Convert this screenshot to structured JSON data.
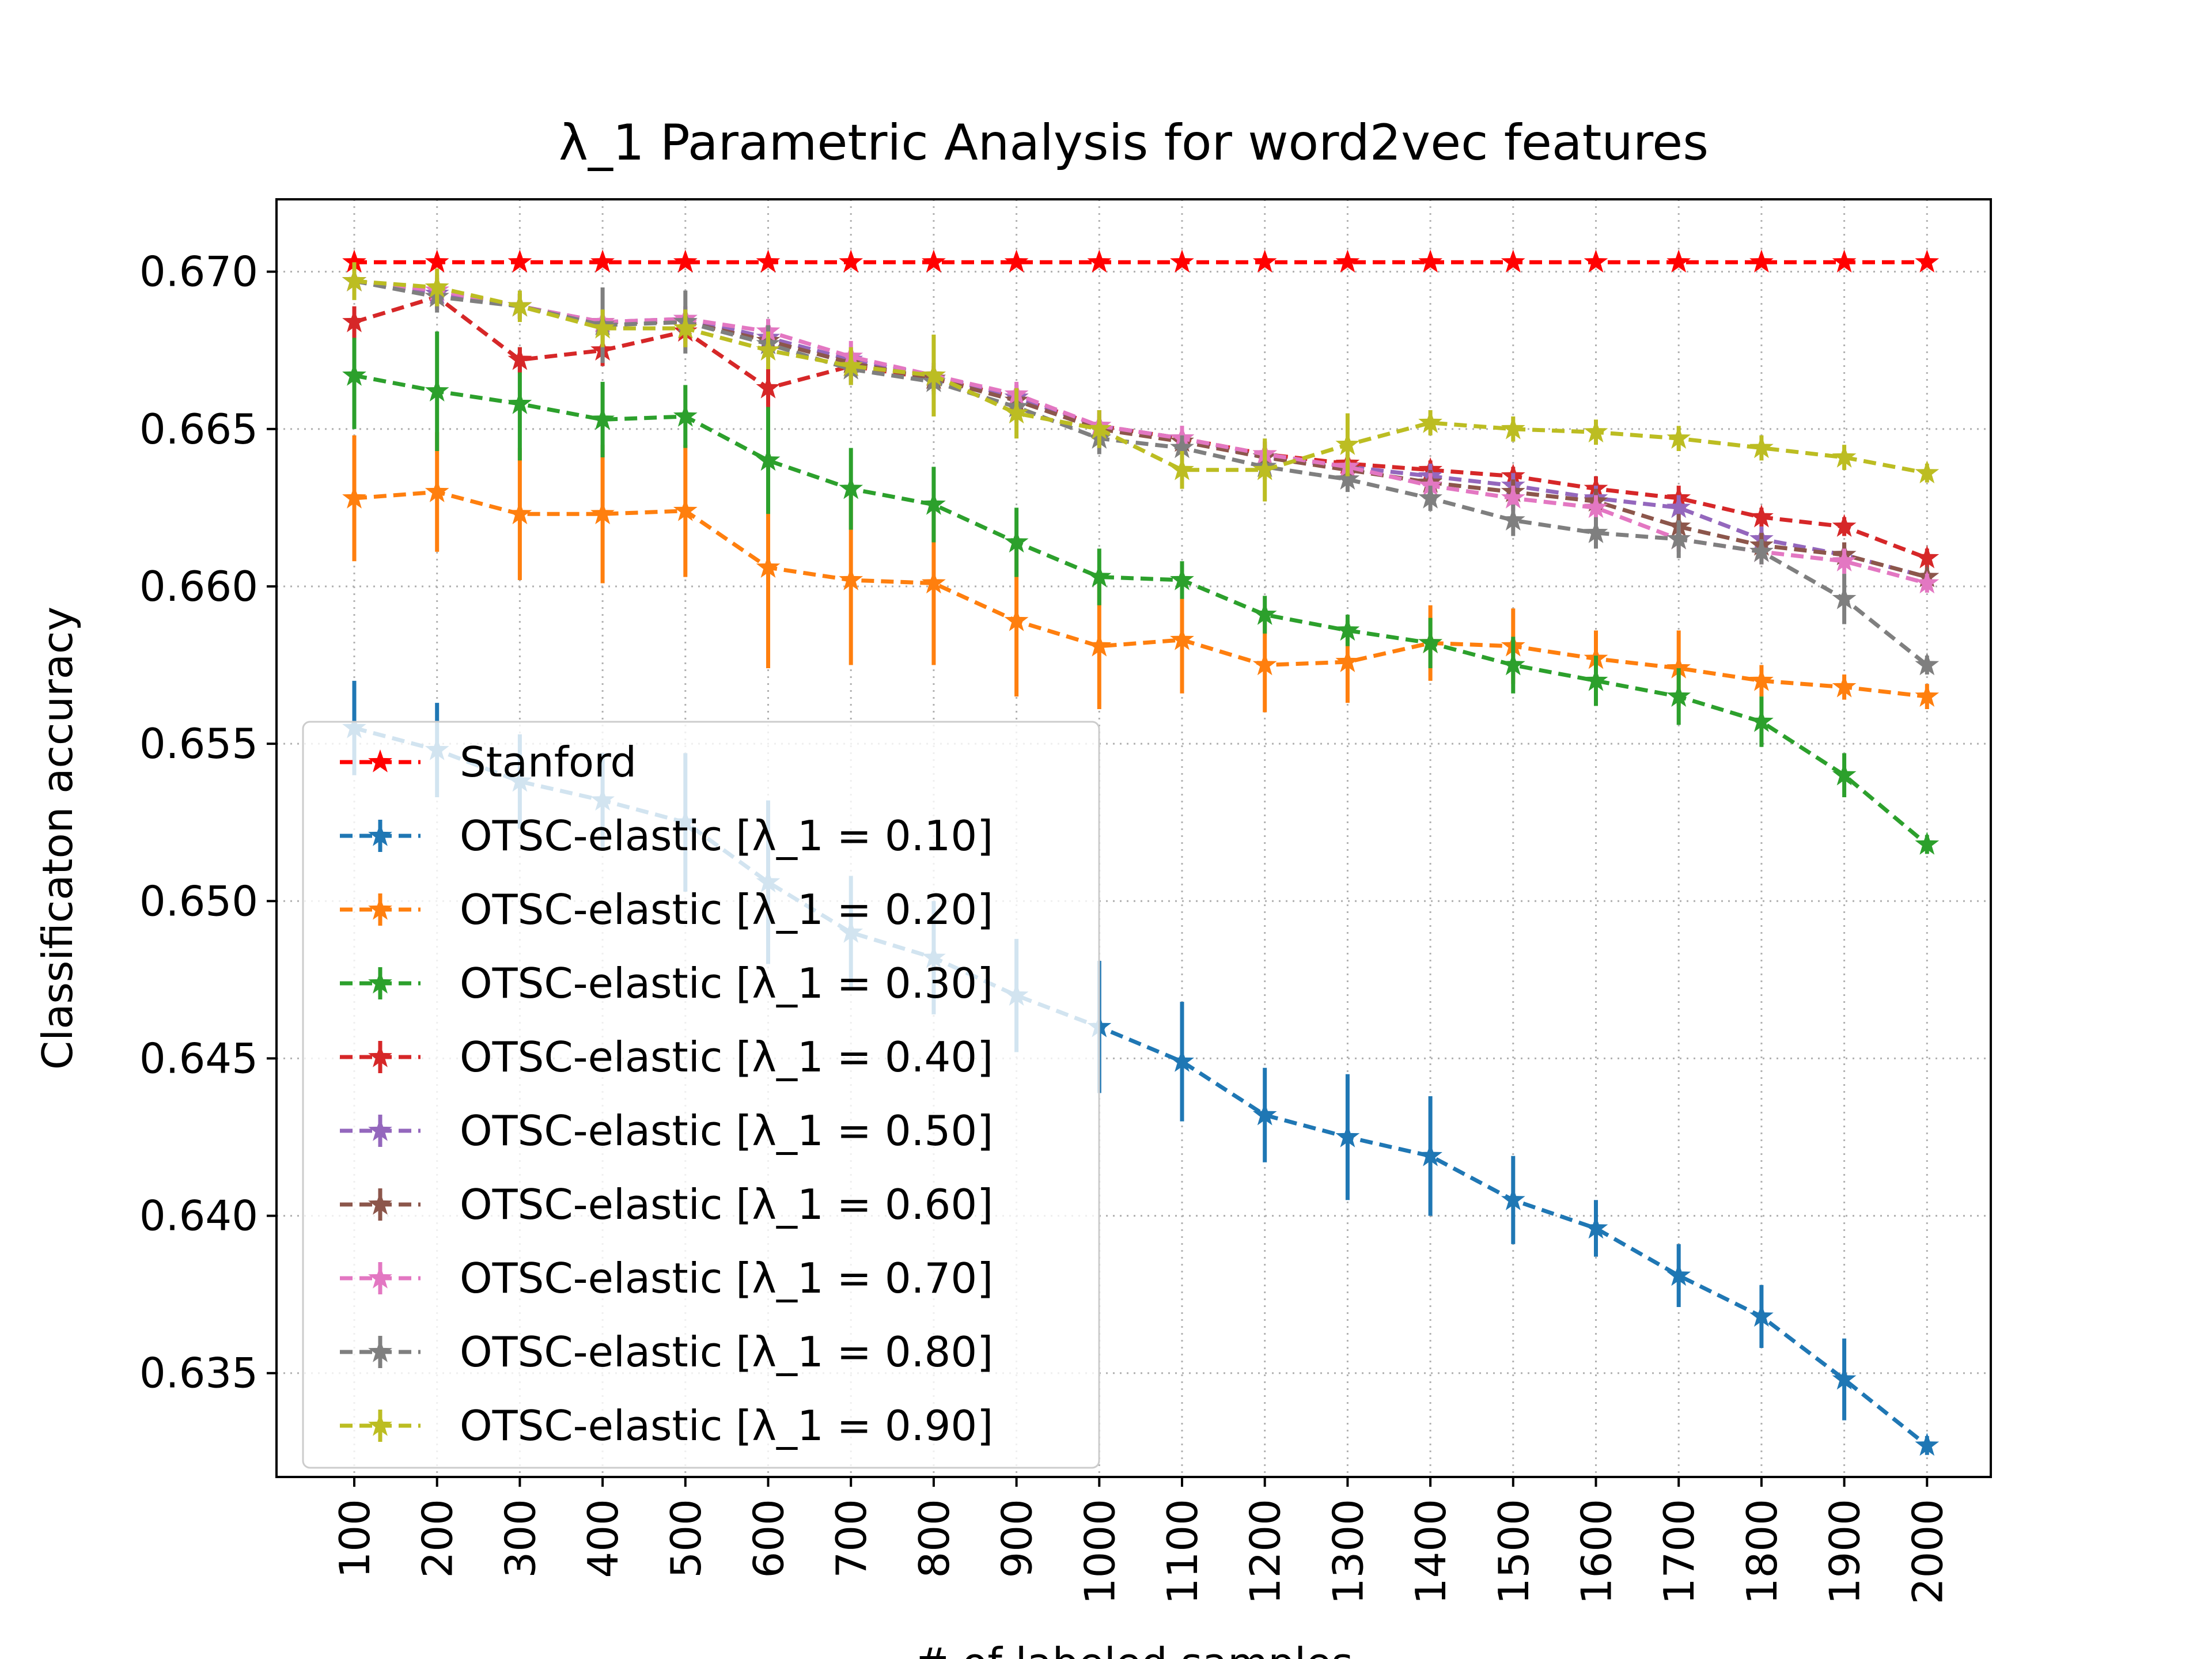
{
  "chart_data": {
    "type": "line",
    "title": "λ_1 Parametric Analysis for word2vec features",
    "xlabel": "# of labeled samples",
    "ylabel": "Classificaton accuracy",
    "x": [
      100,
      200,
      300,
      400,
      500,
      600,
      700,
      800,
      900,
      1000,
      1100,
      1200,
      1300,
      1400,
      1500,
      1600,
      1700,
      1800,
      1900,
      2000
    ],
    "xticks": [
      "100",
      "200",
      "300",
      "400",
      "500",
      "600",
      "700",
      "800",
      "900",
      "1000",
      "1100",
      "1200",
      "1300",
      "1400",
      "1500",
      "1600",
      "1700",
      "1800",
      "1900",
      "2000"
    ],
    "yticks": [
      "0.635",
      "0.640",
      "0.645",
      "0.650",
      "0.655",
      "0.660",
      "0.665",
      "0.670"
    ],
    "ylim": [
      0.6317,
      0.6723
    ],
    "grid": true,
    "legend_position": "lower-left",
    "marker": "star",
    "line_style": "dashed",
    "series": [
      {
        "name": "Stanford",
        "color": "#ff0000",
        "values": [
          0.6703,
          0.6703,
          0.6703,
          0.6703,
          0.6703,
          0.6703,
          0.6703,
          0.6703,
          0.6703,
          0.6703,
          0.6703,
          0.6703,
          0.6703,
          0.6703,
          0.6703,
          0.6703,
          0.6703,
          0.6703,
          0.6703,
          0.6703
        ],
        "errors": [
          0,
          0,
          0,
          0,
          0,
          0,
          0,
          0,
          0,
          0,
          0,
          0,
          0,
          0,
          0,
          0,
          0,
          0,
          0,
          0
        ]
      },
      {
        "name": "OTSC-elastic [λ_1 = 0.10]",
        "color": "#1f77b4",
        "values": [
          0.6555,
          0.6548,
          0.6538,
          0.6532,
          0.6525,
          0.6506,
          0.649,
          0.6482,
          0.647,
          0.646,
          0.6449,
          0.6432,
          0.6425,
          0.6419,
          0.6405,
          0.6396,
          0.6381,
          0.6368,
          0.6348,
          0.6327
        ],
        "errors": [
          0.0015,
          0.0015,
          0.0015,
          0.0015,
          0.0022,
          0.0026,
          0.0018,
          0.0018,
          0.0018,
          0.0021,
          0.0019,
          0.0015,
          0.002,
          0.0019,
          0.0014,
          0.0009,
          0.001,
          0.001,
          0.0013,
          0.0003
        ]
      },
      {
        "name": "OTSC-elastic [λ_1 = 0.20]",
        "color": "#ff7f0e",
        "values": [
          0.6628,
          0.663,
          0.6623,
          0.6623,
          0.6624,
          0.6606,
          0.6602,
          0.6601,
          0.6589,
          0.6581,
          0.6583,
          0.6575,
          0.6576,
          0.6582,
          0.6581,
          0.6577,
          0.6574,
          0.657,
          0.6568,
          0.6565
        ],
        "errors": [
          0.002,
          0.0019,
          0.0021,
          0.0022,
          0.0021,
          0.0032,
          0.0027,
          0.0026,
          0.0024,
          0.002,
          0.0017,
          0.0015,
          0.0013,
          0.0012,
          0.0012,
          0.0009,
          0.0012,
          0.0005,
          0.0004,
          0.0004
        ]
      },
      {
        "name": "OTSC-elastic [λ_1 = 0.30]",
        "color": "#2ca02c",
        "values": [
          0.6667,
          0.6662,
          0.6658,
          0.6653,
          0.6654,
          0.664,
          0.6631,
          0.6626,
          0.6614,
          0.6603,
          0.6602,
          0.6591,
          0.6586,
          0.6582,
          0.6575,
          0.657,
          0.6565,
          0.6557,
          0.654,
          0.6518
        ],
        "errors": [
          0.0017,
          0.0019,
          0.0018,
          0.0012,
          0.001,
          0.0017,
          0.0013,
          0.0012,
          0.0011,
          0.0009,
          0.0006,
          0.0006,
          0.0005,
          0.0008,
          0.0009,
          0.0008,
          0.0009,
          0.0008,
          0.0007,
          0.0003
        ]
      },
      {
        "name": "OTSC-elastic [λ_1 = 0.40]",
        "color": "#d62728",
        "values": [
          0.6684,
          0.6692,
          0.6672,
          0.6675,
          0.6681,
          0.6663,
          0.667,
          0.6666,
          0.666,
          0.6651,
          0.6647,
          0.6642,
          0.6639,
          0.6637,
          0.6635,
          0.6631,
          0.6628,
          0.6622,
          0.6619,
          0.6609
        ],
        "errors": [
          0.0005,
          0.0004,
          0.0004,
          0.0005,
          0.0005,
          0.0006,
          0.0005,
          0.0004,
          0.0004,
          0.0005,
          0.0004,
          0.0004,
          0.0003,
          0.0003,
          0.0003,
          0.0004,
          0.0004,
          0.0003,
          0.0003,
          0.0003
        ]
      },
      {
        "name": "OTSC-elastic [λ_1 = 0.50]",
        "color": "#9467bd",
        "values": [
          0.6697,
          0.6693,
          0.6689,
          0.6684,
          0.6685,
          0.6679,
          0.6672,
          0.6667,
          0.666,
          0.6651,
          0.6647,
          0.6641,
          0.6638,
          0.6635,
          0.6632,
          0.6628,
          0.6625,
          0.6615,
          0.661,
          0.6603
        ],
        "errors": [
          0.0004,
          0.0004,
          0.0004,
          0.0004,
          0.0004,
          0.0004,
          0.0004,
          0.0004,
          0.0004,
          0.0004,
          0.0004,
          0.0004,
          0.0004,
          0.0004,
          0.0004,
          0.0004,
          0.0004,
          0.0004,
          0.0004,
          0.0003
        ]
      },
      {
        "name": "OTSC-elastic [λ_1 = 0.60]",
        "color": "#8c564b",
        "values": [
          0.6697,
          0.6694,
          0.6689,
          0.6684,
          0.6684,
          0.6678,
          0.6671,
          0.6666,
          0.6659,
          0.665,
          0.6646,
          0.6641,
          0.6637,
          0.6633,
          0.663,
          0.6627,
          0.6619,
          0.6613,
          0.661,
          0.6603
        ],
        "errors": [
          0.0004,
          0.0004,
          0.0004,
          0.0004,
          0.0004,
          0.0004,
          0.0004,
          0.0004,
          0.0004,
          0.0004,
          0.0004,
          0.0004,
          0.0004,
          0.0004,
          0.0004,
          0.0004,
          0.0004,
          0.0004,
          0.0004,
          0.0003
        ]
      },
      {
        "name": "OTSC-elastic [λ_1 = 0.70]",
        "color": "#e377c2",
        "values": [
          0.6697,
          0.6694,
          0.6689,
          0.6684,
          0.6685,
          0.6681,
          0.6673,
          0.6667,
          0.6661,
          0.6651,
          0.6647,
          0.6642,
          0.6638,
          0.6632,
          0.6628,
          0.6625,
          0.6615,
          0.6611,
          0.6608,
          0.6601
        ],
        "errors": [
          0.0005,
          0.0005,
          0.0004,
          0.0004,
          0.0004,
          0.0004,
          0.0005,
          0.0004,
          0.0004,
          0.0005,
          0.0004,
          0.0004,
          0.0004,
          0.0004,
          0.0004,
          0.0004,
          0.0004,
          0.0004,
          0.0004,
          0.0003
        ]
      },
      {
        "name": "OTSC-elastic [λ_1 = 0.80]",
        "color": "#7f7f7f",
        "values": [
          0.6697,
          0.6692,
          0.6689,
          0.6683,
          0.6684,
          0.6677,
          0.6669,
          0.6665,
          0.6657,
          0.6647,
          0.6644,
          0.6638,
          0.6634,
          0.6628,
          0.6621,
          0.6617,
          0.6615,
          0.6611,
          0.6596,
          0.6575
        ],
        "errors": [
          0.0004,
          0.0005,
          0.0004,
          0.0012,
          0.001,
          0.0006,
          0.0005,
          0.0004,
          0.0005,
          0.0005,
          0.0004,
          0.0004,
          0.0004,
          0.0004,
          0.0005,
          0.0005,
          0.0006,
          0.0004,
          0.0008,
          0.0003
        ]
      },
      {
        "name": "OTSC-elastic [λ_1 = 0.90]",
        "color": "#bcbd22",
        "values": [
          0.6697,
          0.6695,
          0.6689,
          0.6682,
          0.6682,
          0.6675,
          0.667,
          0.6667,
          0.6655,
          0.665,
          0.6637,
          0.6637,
          0.6645,
          0.6652,
          0.665,
          0.6649,
          0.6647,
          0.6644,
          0.6641,
          0.6636
        ],
        "errors": [
          0.0006,
          0.0006,
          0.0005,
          0.0006,
          0.0006,
          0.0006,
          0.0006,
          0.0013,
          0.0008,
          0.0006,
          0.0006,
          0.001,
          0.001,
          0.0004,
          0.0004,
          0.0004,
          0.0004,
          0.0004,
          0.0004,
          0.0003
        ]
      }
    ]
  }
}
